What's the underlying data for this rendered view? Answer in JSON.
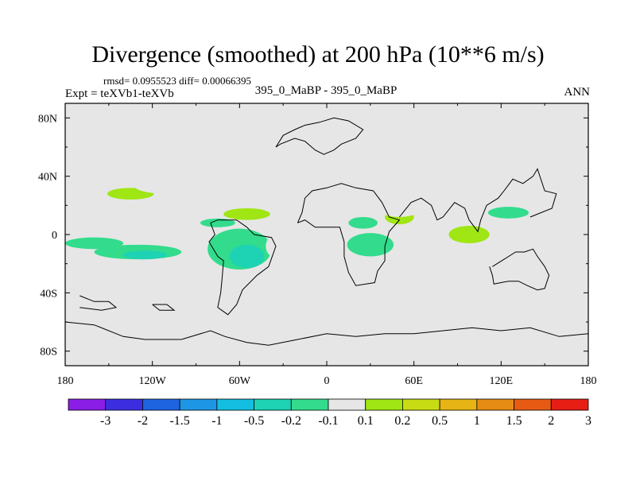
{
  "header": {
    "title": "Divergence (smoothed) at 200 hPa (10**6 m/s)",
    "stats": "rmsd= 0.0955523  diff= 0.00066395",
    "expt": "Expt = teXVb1-teXVb",
    "comparison": "395_0_MaBP - 395_0_MaBP",
    "period": "ANN"
  },
  "chart_data": {
    "type": "heatmap",
    "title": "Divergence (smoothed) at 200 hPa (10**6 m/s)",
    "xlabel": "",
    "ylabel": "",
    "x_range": [
      -180,
      180
    ],
    "y_range": [
      -90,
      90
    ],
    "x_ticks": [
      {
        "value": -180,
        "label": "180"
      },
      {
        "value": -120,
        "label": "120W"
      },
      {
        "value": -60,
        "label": "60W"
      },
      {
        "value": 0,
        "label": "0"
      },
      {
        "value": 60,
        "label": "60E"
      },
      {
        "value": 120,
        "label": "120E"
      },
      {
        "value": 180,
        "label": "180"
      }
    ],
    "y_ticks": [
      {
        "value": 80,
        "label": "80N"
      },
      {
        "value": 40,
        "label": "40N"
      },
      {
        "value": 0,
        "label": "0"
      },
      {
        "value": -40,
        "label": "40S"
      },
      {
        "value": -80,
        "label": "80S"
      }
    ],
    "colorbar": {
      "labels": [
        "-3",
        "-2",
        "-1.5",
        "-1",
        "-0.5",
        "-0.2",
        "-0.1",
        "0.1",
        "0.2",
        "0.5",
        "1",
        "1.5",
        "2",
        "3"
      ],
      "colors": [
        "#8a1ee6",
        "#3c2ee0",
        "#1e64e0",
        "#1e96e6",
        "#14bee0",
        "#1ed2b4",
        "#32dc8c",
        "#e6e6e6",
        "#a0e614",
        "#c8dc14",
        "#e6b414",
        "#e68c14",
        "#e65a14",
        "#e61e14"
      ]
    },
    "regions": [
      {
        "lon": -165,
        "lat": 22,
        "rlon": 6,
        "rlat": 5,
        "level": "0.1"
      },
      {
        "lon": -170,
        "lat": 10,
        "rlon": 8,
        "rlat": 3,
        "level": "0.1"
      },
      {
        "lon": -150,
        "lat": 32,
        "rlon": 20,
        "rlat": 6,
        "level": "0.1"
      },
      {
        "lon": -135,
        "lat": 28,
        "rlon": 16,
        "rlat": 4,
        "level": "0.2"
      },
      {
        "lon": -110,
        "lat": 33,
        "rlon": 22,
        "rlat": 5,
        "level": "0.1"
      },
      {
        "lon": -160,
        "lat": -6,
        "rlon": 20,
        "rlat": 4,
        "level": "-0.1"
      },
      {
        "lon": -130,
        "lat": -12,
        "rlon": 30,
        "rlat": 5,
        "level": "-0.1"
      },
      {
        "lon": -125,
        "lat": -14,
        "rlon": 15,
        "rlat": 3,
        "level": "-0.2"
      },
      {
        "lon": -170,
        "lat": -18,
        "rlon": 10,
        "rlat": 3,
        "level": "0.1"
      },
      {
        "lon": -60,
        "lat": -10,
        "rlon": 22,
        "rlat": 14,
        "level": "-0.1"
      },
      {
        "lon": -55,
        "lat": -15,
        "rlon": 12,
        "rlat": 8,
        "level": "-0.2"
      },
      {
        "lon": -30,
        "lat": -8,
        "rlon": 12,
        "rlat": 10,
        "level": "0.1"
      },
      {
        "lon": -55,
        "lat": 14,
        "rlon": 28,
        "rlat": 7,
        "level": "0.1"
      },
      {
        "lon": -55,
        "lat": 14,
        "rlon": 16,
        "rlat": 4,
        "level": "0.2"
      },
      {
        "lon": -75,
        "lat": 8,
        "rlon": 12,
        "rlat": 3,
        "level": "-0.1"
      },
      {
        "lon": -70,
        "lat": 33,
        "rlon": 8,
        "rlat": 4,
        "level": "0.1"
      },
      {
        "lon": -20,
        "lat": 35,
        "rlon": 16,
        "rlat": 7,
        "level": "0.1"
      },
      {
        "lon": 20,
        "lat": 20,
        "rlon": 12,
        "rlat": 10,
        "level": "0.1"
      },
      {
        "lon": 25,
        "lat": 8,
        "rlon": 10,
        "rlat": 4,
        "level": "-0.1"
      },
      {
        "lon": 50,
        "lat": 12,
        "rlon": 10,
        "rlat": 5,
        "level": "0.2"
      },
      {
        "lon": 50,
        "lat": 22,
        "rlon": 18,
        "rlat": 10,
        "level": "0.1"
      },
      {
        "lon": 30,
        "lat": -7,
        "rlon": 16,
        "rlat": 8,
        "level": "-0.1"
      },
      {
        "lon": -20,
        "lat": -18,
        "rlon": 10,
        "rlat": 6,
        "level": "0.1"
      },
      {
        "lon": 20,
        "lat": -26,
        "rlon": 10,
        "rlat": 4,
        "level": "0.1"
      },
      {
        "lon": 60,
        "lat": -12,
        "rlon": 10,
        "rlat": 12,
        "level": "0.1"
      },
      {
        "lon": 95,
        "lat": 0,
        "rlon": 28,
        "rlat": 12,
        "level": "0.1"
      },
      {
        "lon": 98,
        "lat": 0,
        "rlon": 14,
        "rlat": 6,
        "level": "0.2"
      },
      {
        "lon": 100,
        "lat": 32,
        "rlon": 22,
        "rlat": 6,
        "level": "0.1"
      },
      {
        "lon": 140,
        "lat": 30,
        "rlon": 22,
        "rlat": 8,
        "level": "0.1"
      },
      {
        "lon": 125,
        "lat": 15,
        "rlon": 14,
        "rlat": 4,
        "level": "-0.1"
      },
      {
        "lon": 150,
        "lat": 5,
        "rlon": 10,
        "rlat": 5,
        "level": "0.1"
      },
      {
        "lon": 115,
        "lat": -20,
        "rlon": 16,
        "rlat": 5,
        "level": "0.1"
      },
      {
        "lon": 160,
        "lat": -15,
        "rlon": 15,
        "rlat": 10,
        "level": "0.1"
      },
      {
        "lon": 170,
        "lat": -25,
        "rlon": 8,
        "rlat": 4,
        "level": "0.1"
      },
      {
        "lon": -140,
        "lat": -52,
        "rlon": 6,
        "rlat": 2,
        "level": "0.1"
      }
    ],
    "coastlines": [
      [
        [
          -35,
          60
        ],
        [
          -30,
          68
        ],
        [
          -22,
          72
        ],
        [
          -15,
          75
        ],
        [
          -5,
          77
        ],
        [
          5,
          80
        ],
        [
          15,
          78
        ],
        [
          25,
          72
        ],
        [
          20,
          66
        ],
        [
          10,
          62
        ],
        [
          5,
          58
        ],
        [
          -2,
          55
        ],
        [
          -8,
          58
        ],
        [
          -15,
          64
        ],
        [
          -22,
          66
        ],
        [
          -32,
          62
        ],
        [
          -35,
          60
        ]
      ],
      [
        [
          -20,
          8
        ],
        [
          -17,
          15
        ],
        [
          -15,
          25
        ],
        [
          -10,
          30
        ],
        [
          0,
          32
        ],
        [
          10,
          35
        ],
        [
          20,
          32
        ],
        [
          32,
          30
        ],
        [
          38,
          22
        ],
        [
          43,
          12
        ],
        [
          50,
          10
        ],
        [
          43,
          2
        ],
        [
          40,
          -8
        ],
        [
          40,
          -18
        ],
        [
          35,
          -25
        ],
        [
          33,
          -33
        ],
        [
          20,
          -35
        ],
        [
          15,
          -26
        ],
        [
          12,
          -15
        ],
        [
          12,
          -5
        ],
        [
          9,
          5
        ],
        [
          0,
          5
        ],
        [
          -8,
          5
        ],
        [
          -15,
          10
        ],
        [
          -20,
          8
        ]
      ],
      [
        [
          50,
          12
        ],
        [
          58,
          22
        ],
        [
          65,
          25
        ],
        [
          72,
          20
        ],
        [
          76,
          10
        ],
        [
          80,
          12
        ],
        [
          88,
          22
        ],
        [
          95,
          18
        ],
        [
          98,
          10
        ],
        [
          104,
          2
        ],
        [
          106,
          10
        ],
        [
          110,
          20
        ],
        [
          118,
          25
        ],
        [
          122,
          30
        ],
        [
          128,
          38
        ],
        [
          135,
          35
        ],
        [
          142,
          40
        ],
        [
          145,
          45
        ],
        [
          150,
          30
        ],
        [
          158,
          28
        ],
        [
          155,
          18
        ],
        [
          140,
          12
        ]
      ],
      [
        [
          -80,
          8
        ],
        [
          -77,
          0
        ],
        [
          -81,
          -5
        ],
        [
          -75,
          -15
        ],
        [
          -71,
          -18
        ],
        [
          -72,
          -30
        ],
        [
          -73,
          -40
        ],
        [
          -75,
          -50
        ],
        [
          -68,
          -55
        ],
        [
          -62,
          -48
        ],
        [
          -58,
          -38
        ],
        [
          -48,
          -28
        ],
        [
          -40,
          -22
        ],
        [
          -35,
          -8
        ],
        [
          -38,
          -2
        ],
        [
          -50,
          0
        ],
        [
          -55,
          5
        ],
        [
          -62,
          10
        ],
        [
          -75,
          10
        ],
        [
          -80,
          8
        ]
      ],
      [
        [
          -180,
          -60
        ],
        [
          -160,
          -62
        ],
        [
          -140,
          -70
        ],
        [
          -125,
          -72
        ],
        [
          -100,
          -72
        ],
        [
          -80,
          -66
        ],
        [
          -70,
          -70
        ],
        [
          -55,
          -74
        ],
        [
          -40,
          -76
        ],
        [
          -20,
          -72
        ],
        [
          0,
          -68
        ],
        [
          20,
          -70
        ],
        [
          40,
          -68
        ],
        [
          60,
          -68
        ],
        [
          80,
          -66
        ],
        [
          100,
          -64
        ],
        [
          120,
          -66
        ],
        [
          140,
          -64
        ],
        [
          160,
          -70
        ],
        [
          180,
          -68
        ]
      ],
      [
        [
          112,
          -22
        ],
        [
          114,
          -28
        ],
        [
          115,
          -34
        ],
        [
          125,
          -32
        ],
        [
          132,
          -32
        ],
        [
          138,
          -35
        ],
        [
          145,
          -38
        ],
        [
          150,
          -37
        ],
        [
          153,
          -28
        ],
        [
          150,
          -22
        ],
        [
          145,
          -15
        ],
        [
          142,
          -10
        ],
        [
          136,
          -12
        ],
        [
          130,
          -12
        ],
        [
          122,
          -17
        ],
        [
          114,
          -22
        ]
      ],
      [
        [
          -170,
          -42
        ],
        [
          -160,
          -46
        ],
        [
          -150,
          -46
        ],
        [
          -145,
          -50
        ],
        [
          -155,
          -52
        ],
        [
          -170,
          -50
        ]
      ],
      [
        [
          -120,
          -48
        ],
        [
          -115,
          -52
        ],
        [
          -105,
          -52
        ],
        [
          -110,
          -48
        ],
        [
          -120,
          -48
        ]
      ]
    ]
  }
}
